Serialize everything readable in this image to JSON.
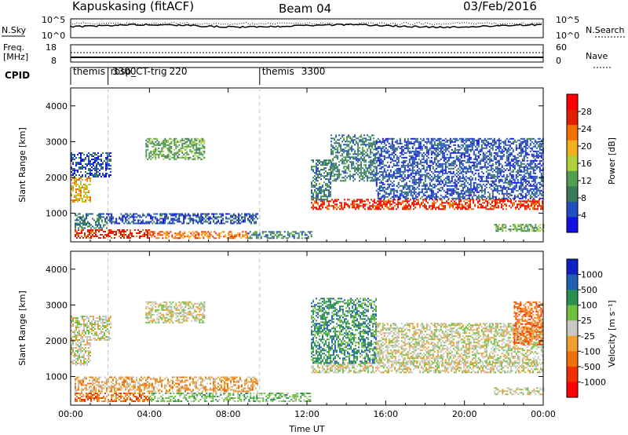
{
  "header": {
    "station": "Kapuskasing (fitACF)",
    "beam": "Beam 04",
    "date": "03/Feb/2016"
  },
  "top_panels": {
    "nsky_label": "N.Sky",
    "nsky_ticks": [
      "10^5",
      "10^0"
    ],
    "nsearch_label": "N.Search",
    "nsearch_ticks": [
      "10^5",
      "10^0"
    ],
    "freq_label_top": "Freq.",
    "freq_label_bottom": "[MHz]",
    "freq_ticks": [
      "18",
      "8"
    ],
    "nave_label": "Nave",
    "nave_ticks": [
      "60",
      "0"
    ],
    "cpid_label": "CPID",
    "cpid_segments": [
      {
        "start_hr": 0.0,
        "end_hr": 1.9,
        "name": "themis",
        "id": "3300"
      },
      {
        "start_hr": 1.9,
        "end_hr": 9.6,
        "name": "rbsp_CT-trig",
        "id": "220"
      },
      {
        "start_hr": 9.6,
        "end_hr": 24.0,
        "name": "themis",
        "id": "3300"
      }
    ]
  },
  "colors": {
    "ground_scatter": "#c8c8c4",
    "power_scale": [
      "#1010e0",
      "#2050c0",
      "#3a7a5a",
      "#50a050",
      "#b0d040",
      "#f0b020",
      "#f07000",
      "#e02000",
      "#ff0000"
    ],
    "velocity_scale": [
      "#1020c0",
      "#2060b0",
      "#2a9050",
      "#70c040",
      "#c8c8c4",
      "#f0a030",
      "#f07010",
      "#f03000",
      "#ff0000"
    ]
  },
  "chart_data": [
    {
      "type": "heatmap",
      "name": "power",
      "x_label": "",
      "y_label": "Slant Range [km]",
      "x_range_hours": [
        0,
        24
      ],
      "x_ticks": [
        "00:00",
        "04:00",
        "08:00",
        "12:00",
        "16:00",
        "20:00",
        "00:00"
      ],
      "y_range_km": [
        200,
        4500
      ],
      "y_ticks": [
        "1000",
        "2000",
        "3000",
        "4000"
      ],
      "colorbar_label": "Power [dB]",
      "colorbar_ticks": [
        "4",
        "8",
        "12",
        "16",
        "20",
        "24",
        "28"
      ],
      "regions": [
        {
          "t0": 0.0,
          "t1": 1.0,
          "r0": 1300,
          "r1": 2000,
          "level": 5
        },
        {
          "t0": 0.0,
          "t1": 2.0,
          "r0": 2000,
          "r1": 2700,
          "level": 1
        },
        {
          "t0": 3.8,
          "t1": 6.8,
          "r0": 2500,
          "r1": 3100,
          "level": 3
        },
        {
          "t0": 0.2,
          "t1": 1.8,
          "r0": 600,
          "r1": 1000,
          "level": 2
        },
        {
          "t0": 1.8,
          "t1": 9.5,
          "r0": 700,
          "r1": 1000,
          "level": 1
        },
        {
          "t0": 0.2,
          "t1": 4.0,
          "r0": 300,
          "r1": 550,
          "level": 7
        },
        {
          "t0": 4.0,
          "t1": 9.0,
          "r0": 300,
          "r1": 500,
          "level": 6
        },
        {
          "t0": 9.0,
          "t1": 12.2,
          "r0": 300,
          "r1": 500,
          "level": 2
        },
        {
          "t0": 12.2,
          "t1": 24.0,
          "r0": 1100,
          "r1": 1400,
          "level": 7
        },
        {
          "t0": 12.2,
          "t1": 13.2,
          "r0": 1400,
          "r1": 2500,
          "level": 2
        },
        {
          "t0": 13.2,
          "t1": 15.5,
          "r0": 1900,
          "r1": 3200,
          "level": 2
        },
        {
          "t0": 15.5,
          "t1": 24.0,
          "r0": 1400,
          "r1": 3100,
          "level": 1
        },
        {
          "t0": 21.5,
          "t1": 24.0,
          "r0": 500,
          "r1": 700,
          "level": 3
        }
      ]
    },
    {
      "type": "heatmap",
      "name": "velocity",
      "x_label": "Time UT",
      "y_label": "Slant Range [km]",
      "x_range_hours": [
        0,
        24
      ],
      "x_ticks": [
        "00:00",
        "04:00",
        "08:00",
        "12:00",
        "16:00",
        "20:00",
        "00:00"
      ],
      "y_range_km": [
        200,
        4500
      ],
      "y_ticks": [
        "1000",
        "2000",
        "3000",
        "4000"
      ],
      "colorbar_label": "Velocity [m s⁻¹]",
      "colorbar_ticks": [
        "1000",
        "500",
        "100",
        "25",
        "-25",
        "-100",
        "-500",
        "-1000"
      ],
      "regions": [
        {
          "t0": 0.0,
          "t1": 1.0,
          "r0": 1300,
          "r1": 2000,
          "level": 4
        },
        {
          "t0": 0.0,
          "t1": 2.0,
          "r0": 2000,
          "r1": 2700,
          "level": 4
        },
        {
          "t0": 3.8,
          "t1": 6.8,
          "r0": 2500,
          "r1": 3100,
          "level": 4
        },
        {
          "t0": 0.2,
          "t1": 9.5,
          "r0": 600,
          "r1": 1000,
          "level": 5
        },
        {
          "t0": 0.2,
          "t1": 4.0,
          "r0": 300,
          "r1": 550,
          "level": 6
        },
        {
          "t0": 4.0,
          "t1": 12.2,
          "r0": 300,
          "r1": 550,
          "level": 3
        },
        {
          "t0": 12.2,
          "t1": 24.0,
          "r0": 1100,
          "r1": 1400,
          "level": 4
        },
        {
          "t0": 12.2,
          "t1": 15.5,
          "r0": 1400,
          "r1": 3200,
          "level": 2
        },
        {
          "t0": 15.5,
          "t1": 24.0,
          "r0": 1400,
          "r1": 2500,
          "level": 4
        },
        {
          "t0": 22.5,
          "t1": 24.0,
          "r0": 1900,
          "r1": 3100,
          "level": 6
        },
        {
          "t0": 21.5,
          "t1": 24.0,
          "r0": 500,
          "r1": 700,
          "level": 4
        }
      ]
    }
  ]
}
